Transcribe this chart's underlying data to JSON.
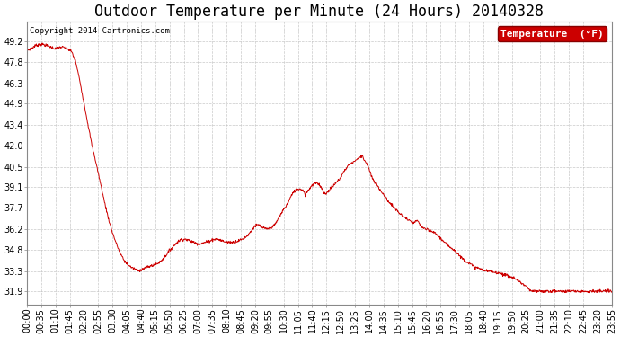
{
  "title": "Outdoor Temperature per Minute (24 Hours) 20140328",
  "copyright_text": "Copyright 2014 Cartronics.com",
  "legend_label": "Temperature  (°F)",
  "line_color": "#cc0000",
  "legend_bg": "#cc0000",
  "legend_text_color": "#ffffff",
  "background_color": "#ffffff",
  "grid_color": "#bbbbbb",
  "ylim": [
    31.0,
    50.6
  ],
  "yticks": [
    31.9,
    33.3,
    34.8,
    36.2,
    37.7,
    39.1,
    40.5,
    42.0,
    43.4,
    44.9,
    46.3,
    47.8,
    49.2
  ],
  "title_fontsize": 12,
  "tick_fontsize": 7,
  "x_tick_labels": [
    "00:00",
    "00:35",
    "01:10",
    "01:45",
    "02:20",
    "02:55",
    "03:30",
    "04:05",
    "04:40",
    "05:15",
    "05:50",
    "06:25",
    "07:00",
    "07:35",
    "08:10",
    "08:45",
    "09:20",
    "09:55",
    "10:30",
    "11:05",
    "11:40",
    "12:15",
    "12:50",
    "13:25",
    "14:00",
    "14:35",
    "15:10",
    "15:45",
    "16:20",
    "16:55",
    "17:30",
    "18:05",
    "18:40",
    "19:15",
    "19:50",
    "20:25",
    "21:00",
    "21:35",
    "22:10",
    "22:45",
    "23:20",
    "23:55"
  ],
  "key_points": [
    [
      0,
      48.6
    ],
    [
      10,
      48.7
    ],
    [
      20,
      48.9
    ],
    [
      30,
      49.0
    ],
    [
      40,
      49.0
    ],
    [
      50,
      48.9
    ],
    [
      60,
      48.8
    ],
    [
      70,
      48.7
    ],
    [
      80,
      48.8
    ],
    [
      90,
      48.8
    ],
    [
      100,
      48.7
    ],
    [
      110,
      48.5
    ],
    [
      120,
      47.8
    ],
    [
      130,
      46.5
    ],
    [
      140,
      45.0
    ],
    [
      150,
      43.5
    ],
    [
      160,
      42.0
    ],
    [
      170,
      40.8
    ],
    [
      180,
      39.5
    ],
    [
      190,
      38.2
    ],
    [
      200,
      37.0
    ],
    [
      210,
      36.0
    ],
    [
      220,
      35.2
    ],
    [
      230,
      34.5
    ],
    [
      240,
      34.0
    ],
    [
      250,
      33.7
    ],
    [
      260,
      33.5
    ],
    [
      270,
      33.4
    ],
    [
      275,
      33.3
    ],
    [
      280,
      33.4
    ],
    [
      290,
      33.5
    ],
    [
      300,
      33.6
    ],
    [
      310,
      33.7
    ],
    [
      320,
      33.8
    ],
    [
      330,
      34.0
    ],
    [
      340,
      34.3
    ],
    [
      350,
      34.7
    ],
    [
      360,
      35.0
    ],
    [
      370,
      35.3
    ],
    [
      380,
      35.5
    ],
    [
      390,
      35.5
    ],
    [
      400,
      35.4
    ],
    [
      410,
      35.3
    ],
    [
      420,
      35.2
    ],
    [
      430,
      35.2
    ],
    [
      440,
      35.3
    ],
    [
      450,
      35.4
    ],
    [
      460,
      35.5
    ],
    [
      470,
      35.5
    ],
    [
      480,
      35.4
    ],
    [
      490,
      35.3
    ],
    [
      500,
      35.3
    ],
    [
      510,
      35.3
    ],
    [
      520,
      35.4
    ],
    [
      530,
      35.5
    ],
    [
      540,
      35.7
    ],
    [
      550,
      36.0
    ],
    [
      560,
      36.4
    ],
    [
      570,
      36.5
    ],
    [
      580,
      36.3
    ],
    [
      590,
      36.2
    ],
    [
      600,
      36.3
    ],
    [
      610,
      36.5
    ],
    [
      620,
      37.0
    ],
    [
      630,
      37.5
    ],
    [
      640,
      37.9
    ],
    [
      650,
      38.5
    ],
    [
      660,
      38.9
    ],
    [
      670,
      39.0
    ],
    [
      680,
      38.9
    ],
    [
      685,
      38.6
    ],
    [
      690,
      38.8
    ],
    [
      700,
      39.2
    ],
    [
      710,
      39.4
    ],
    [
      720,
      39.3
    ],
    [
      730,
      38.8
    ],
    [
      735,
      38.6
    ],
    [
      740,
      38.8
    ],
    [
      750,
      39.1
    ],
    [
      760,
      39.4
    ],
    [
      770,
      39.7
    ],
    [
      780,
      40.2
    ],
    [
      790,
      40.6
    ],
    [
      800,
      40.8
    ],
    [
      810,
      41.0
    ],
    [
      820,
      41.2
    ],
    [
      825,
      41.3
    ],
    [
      830,
      41.0
    ],
    [
      835,
      40.8
    ],
    [
      840,
      40.5
    ],
    [
      845,
      40.1
    ],
    [
      850,
      39.7
    ],
    [
      860,
      39.3
    ],
    [
      870,
      38.9
    ],
    [
      880,
      38.5
    ],
    [
      890,
      38.1
    ],
    [
      900,
      37.8
    ],
    [
      910,
      37.5
    ],
    [
      920,
      37.2
    ],
    [
      930,
      37.0
    ],
    [
      940,
      36.8
    ],
    [
      950,
      36.6
    ],
    [
      955,
      36.7
    ],
    [
      960,
      36.8
    ],
    [
      965,
      36.6
    ],
    [
      970,
      36.4
    ],
    [
      975,
      36.3
    ],
    [
      980,
      36.2
    ],
    [
      990,
      36.1
    ],
    [
      1000,
      36.0
    ],
    [
      1010,
      35.8
    ],
    [
      1020,
      35.5
    ],
    [
      1030,
      35.2
    ],
    [
      1040,
      35.0
    ],
    [
      1050,
      34.8
    ],
    [
      1060,
      34.5
    ],
    [
      1070,
      34.2
    ],
    [
      1080,
      34.0
    ],
    [
      1090,
      33.8
    ],
    [
      1100,
      33.6
    ],
    [
      1110,
      33.5
    ],
    [
      1120,
      33.4
    ],
    [
      1130,
      33.3
    ],
    [
      1140,
      33.3
    ],
    [
      1150,
      33.2
    ],
    [
      1160,
      33.2
    ],
    [
      1170,
      33.1
    ],
    [
      1180,
      33.0
    ],
    [
      1190,
      32.9
    ],
    [
      1200,
      32.8
    ],
    [
      1210,
      32.6
    ],
    [
      1220,
      32.4
    ],
    [
      1230,
      32.2
    ],
    [
      1239,
      31.9
    ]
  ]
}
